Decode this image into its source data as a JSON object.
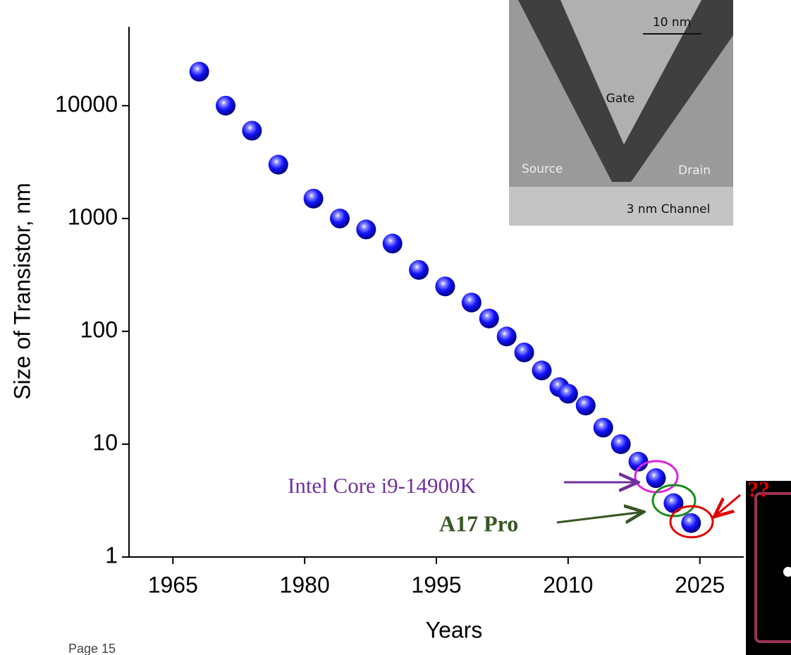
{
  "chart_data": {
    "type": "scatter",
    "x_label": "Years",
    "y_label": "Size of Transistor, nm",
    "x": [
      1968,
      1971,
      1974,
      1977,
      1981,
      1984,
      1987,
      1990,
      1993,
      1996,
      1999,
      2001,
      2003,
      2005,
      2007,
      2009,
      2010,
      2012,
      2014,
      2016,
      2018,
      2020,
      2022,
      2024
    ],
    "values": [
      20000,
      10000,
      6000,
      3000,
      1500,
      1000,
      800,
      600,
      350,
      250,
      180,
      130,
      90,
      65,
      45,
      32,
      28,
      22,
      14,
      10,
      7,
      5,
      3,
      2
    ],
    "color": "#1414ff",
    "xlim": [
      1960,
      2030
    ],
    "xticks": [
      1965,
      1980,
      1995,
      2010,
      2025
    ],
    "ylim": [
      1,
      50000
    ],
    "yticks": [
      1,
      10,
      100,
      1000,
      10000
    ],
    "log_y": true,
    "annotations": [
      "Intel Core i9-14900K",
      "A17 Pro",
      "??"
    ]
  },
  "inset": {
    "scale_bar": "10 nm",
    "gate": "Gate",
    "source": "Source",
    "drain": "Drain",
    "channel": "3 nm Channel"
  },
  "footer": "Page 15"
}
